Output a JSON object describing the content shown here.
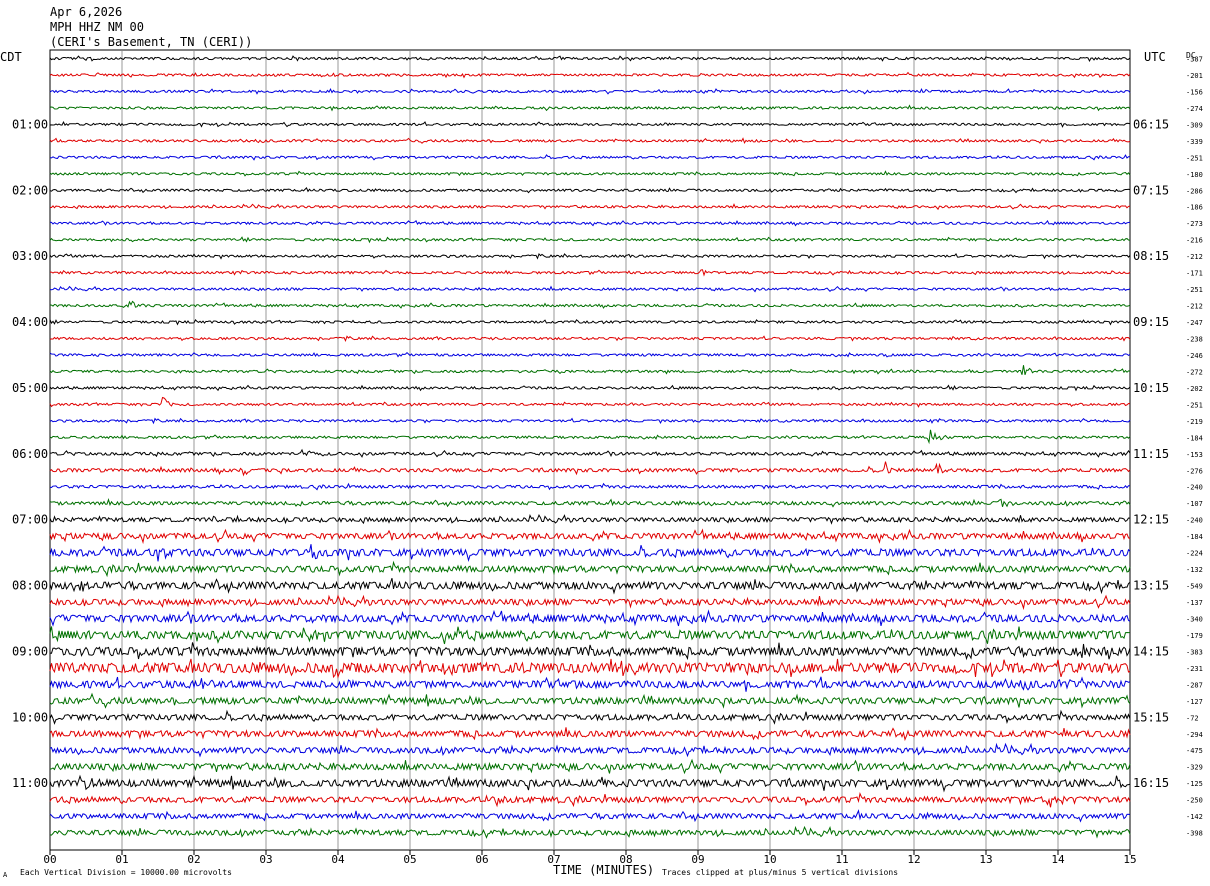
{
  "header": {
    "date": "Apr 6,2026",
    "station": "MPH HHZ NM 00",
    "location": "(CERI's Basement, TN (CERI))"
  },
  "left_zone_label": "CDT",
  "right_zone_label": "UTC",
  "dc_label": "DC",
  "footer": {
    "left_glyph": "A",
    "scale_note": "Each Vertical Division = 10000.00 microvolts",
    "clip_note": "Traces clipped at plus/minus 5 vertical divisions"
  },
  "colors": {
    "trace_cycle": [
      "#000000",
      "#e00000",
      "#0000e0",
      "#007000"
    ],
    "grid": "#808080"
  },
  "chart_data": {
    "type": "line",
    "xlabel": "TIME (MINUTES)",
    "xlim": [
      0,
      15
    ],
    "x_ticks": [
      "00",
      "01",
      "02",
      "03",
      "04",
      "05",
      "06",
      "07",
      "08",
      "09",
      "10",
      "11",
      "12",
      "13",
      "14",
      "15"
    ],
    "left_hour_labels": [
      "01:00",
      "02:00",
      "03:00",
      "04:00",
      "05:00",
      "06:00",
      "07:00",
      "08:00",
      "09:00",
      "10:00",
      "11:00"
    ],
    "right_hour_labels": [
      "06:15",
      "07:15",
      "08:15",
      "09:15",
      "10:15",
      "11:15",
      "12:15",
      "13:15",
      "14:15",
      "15:15",
      "16:15"
    ],
    "dc_offsets": [
      -387,
      -201,
      -156,
      -274,
      -309,
      -339,
      -251,
      -180,
      -286,
      -186,
      -273,
      -216,
      -212,
      -171,
      -251,
      -212,
      -247,
      -238,
      -246,
      -272,
      -202,
      -251,
      -219,
      -184,
      -153,
      -276,
      -240,
      -107,
      -240,
      -184,
      -224,
      -132,
      -549,
      -137,
      -340,
      -179,
      -383,
      -231,
      -287,
      -127,
      -72,
      -294,
      -475,
      -329,
      -125,
      -250,
      -142,
      -398
    ],
    "trace_noise_level": [
      0.8,
      0.8,
      0.8,
      0.8,
      0.8,
      0.8,
      0.8,
      0.8,
      0.8,
      0.8,
      0.8,
      0.8,
      0.8,
      0.8,
      0.8,
      0.8,
      0.8,
      0.8,
      0.8,
      0.8,
      0.8,
      0.8,
      0.8,
      0.8,
      1.0,
      1.2,
      1.0,
      1.2,
      1.5,
      2.0,
      2.5,
      2.2,
      2.5,
      2.0,
      2.5,
      3.0,
      3.0,
      3.5,
      2.5,
      2.2,
      2.0,
      2.2,
      2.0,
      2.2,
      2.5,
      2.0,
      1.8,
      1.8
    ],
    "events": [
      {
        "trace": 15,
        "minute": 1.1,
        "amplitude": 8
      },
      {
        "trace": 13,
        "minute": 9.0,
        "amplitude": 4
      },
      {
        "trace": 19,
        "minute": 13.5,
        "amplitude": 8
      },
      {
        "trace": 21,
        "minute": 1.55,
        "amplitude": 14
      },
      {
        "trace": 23,
        "minute": 12.2,
        "amplitude": 12
      },
      {
        "trace": 24,
        "minute": 3.5,
        "amplitude": 7
      },
      {
        "trace": 25,
        "minute": 2.65,
        "amplitude": 7
      },
      {
        "trace": 25,
        "minute": 12.3,
        "amplitude": 8
      },
      {
        "trace": 25,
        "minute": 11.6,
        "amplitude": 9
      },
      {
        "trace": 27,
        "minute": 13.2,
        "amplitude": 9
      },
      {
        "trace": 28,
        "minute": 2.2,
        "amplitude": 5
      },
      {
        "trace": 30,
        "minute": 3.6,
        "amplitude": 10
      },
      {
        "trace": 30,
        "minute": 1.5,
        "amplitude": 8
      },
      {
        "trace": 32,
        "minute": 0.35,
        "amplitude": 9
      },
      {
        "trace": 35,
        "minute": 3.5,
        "amplitude": 12
      },
      {
        "trace": 35,
        "minute": 5.4,
        "amplitude": 7
      },
      {
        "trace": 36,
        "minute": 14.3,
        "amplitude": 7
      },
      {
        "trace": 37,
        "minute": 3.9,
        "amplitude": 18
      },
      {
        "trace": 37,
        "minute": 7.9,
        "amplitude": 9
      },
      {
        "trace": 38,
        "minute": 2.1,
        "amplitude": 9
      },
      {
        "trace": 39,
        "minute": 14.9,
        "amplitude": 7
      },
      {
        "trace": 41,
        "minute": 13.9,
        "amplitude": 8
      },
      {
        "trace": 44,
        "minute": 0.5,
        "amplitude": 10
      },
      {
        "trace": 45,
        "minute": 13.85,
        "amplitude": 12
      },
      {
        "trace": 45,
        "minute": 6.2,
        "amplitude": 6
      }
    ]
  }
}
